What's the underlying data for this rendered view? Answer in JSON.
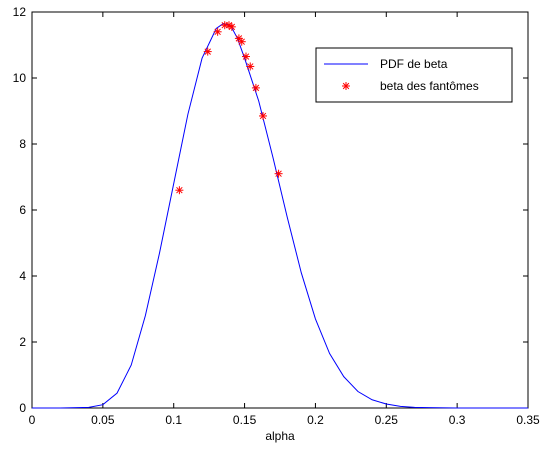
{
  "chart_data": {
    "type": "line",
    "title": "",
    "xlabel": "alpha",
    "ylabel": "",
    "xlim": [
      0,
      0.35
    ],
    "ylim": [
      0,
      12
    ],
    "xticks": [
      0,
      0.05,
      0.1,
      0.15,
      0.2,
      0.25,
      0.3,
      0.35
    ],
    "xtick_labels": [
      "0",
      "0.05",
      "0.1",
      "0.15",
      "0.2",
      "0.25",
      "0.3",
      "0.35"
    ],
    "yticks": [
      0,
      2,
      4,
      6,
      8,
      10,
      12
    ],
    "ytick_labels": [
      "0",
      "2",
      "4",
      "6",
      "8",
      "10",
      "12"
    ],
    "grid": false,
    "legend_position": "top-right",
    "series": [
      {
        "name": "PDF de beta",
        "style": "line",
        "color": "#0000ff",
        "x": [
          0,
          0.02,
          0.04,
          0.05,
          0.06,
          0.07,
          0.08,
          0.09,
          0.1,
          0.11,
          0.12,
          0.13,
          0.135,
          0.14,
          0.145,
          0.15,
          0.16,
          0.17,
          0.18,
          0.19,
          0.2,
          0.21,
          0.22,
          0.23,
          0.24,
          0.25,
          0.26,
          0.27,
          0.28,
          0.3,
          0.35
        ],
        "y": [
          0,
          0,
          0.02,
          0.1,
          0.45,
          1.3,
          2.8,
          4.7,
          6.8,
          8.9,
          10.6,
          11.5,
          11.65,
          11.6,
          11.2,
          10.6,
          9.3,
          7.6,
          5.8,
          4.1,
          2.7,
          1.65,
          0.95,
          0.5,
          0.25,
          0.12,
          0.05,
          0.02,
          0.01,
          0,
          0
        ]
      },
      {
        "name": "beta des fantômes",
        "style": "marker",
        "marker": "*",
        "color": "#ff0000",
        "x": [
          0.104,
          0.124,
          0.131,
          0.136,
          0.139,
          0.141,
          0.146,
          0.148,
          0.151,
          0.154,
          0.158,
          0.163,
          0.174
        ],
        "y": [
          6.6,
          10.8,
          11.4,
          11.6,
          11.6,
          11.55,
          11.2,
          11.1,
          10.65,
          10.35,
          9.7,
          8.85,
          7.1
        ]
      }
    ]
  }
}
